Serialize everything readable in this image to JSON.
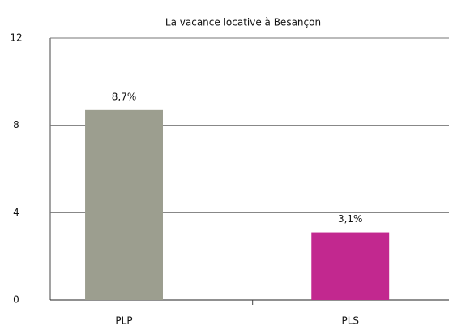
{
  "chart_data": {
    "type": "bar",
    "title": "La vacance locative à Besançon",
    "categories": [
      "PLP",
      "PLS"
    ],
    "values": [
      8.7,
      3.1
    ],
    "value_labels": [
      "8,7%",
      "3,1%"
    ],
    "colors": [
      "#9c9e8f",
      "#c2288f"
    ],
    "ylim": [
      0,
      12
    ],
    "yticks": [
      0,
      4,
      8,
      12
    ],
    "grid": true
  }
}
